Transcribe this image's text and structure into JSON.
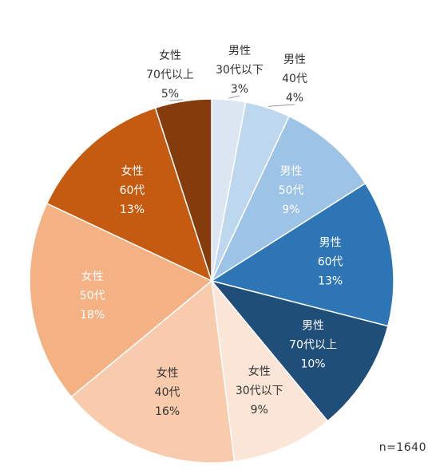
{
  "chart_data": {
    "type": "pie",
    "start_angle_deg": 0,
    "direction": "clockwise",
    "note": "n=1640",
    "slices": [
      {
        "label_lines": [
          "男性",
          "30代以下",
          "3%"
        ],
        "value": 3,
        "color": "#dce6f2",
        "text_color": "#333333",
        "label_outside": true
      },
      {
        "label_lines": [
          "男性",
          "40代",
          "4%"
        ],
        "value": 4,
        "color": "#bdd7ee",
        "text_color": "#333333",
        "label_outside": true
      },
      {
        "label_lines": [
          "男性",
          "50代",
          "9%"
        ],
        "value": 9,
        "color": "#9dc3e6",
        "text_color": "#ffffff",
        "label_outside": false
      },
      {
        "label_lines": [
          "男性",
          "60代",
          "13%"
        ],
        "value": 13,
        "color": "#2e75b6",
        "text_color": "#ffffff",
        "label_outside": false
      },
      {
        "label_lines": [
          "男性",
          "70代以上",
          "10%"
        ],
        "value": 10,
        "color": "#1f4e79",
        "text_color": "#ffffff",
        "label_outside": false
      },
      {
        "label_lines": [
          "女性",
          "30代以下",
          "9%"
        ],
        "value": 9,
        "color": "#fbe5d6",
        "text_color": "#333333",
        "label_outside": false
      },
      {
        "label_lines": [
          "女性",
          "40代",
          "16%"
        ],
        "value": 16,
        "color": "#f8cbad",
        "text_color": "#333333",
        "label_outside": false
      },
      {
        "label_lines": [
          "女性",
          "50代",
          "18%"
        ],
        "value": 18,
        "color": "#f4b183",
        "text_color": "#ffffff",
        "label_outside": false
      },
      {
        "label_lines": [
          "女性",
          "60代",
          "13%"
        ],
        "value": 13,
        "color": "#c55a11",
        "text_color": "#ffffff",
        "label_outside": false
      },
      {
        "label_lines": [
          "女性",
          "70代以上",
          "5%"
        ],
        "value": 5,
        "color": "#843c0c",
        "text_color": "#333333",
        "label_outside": true
      }
    ]
  }
}
